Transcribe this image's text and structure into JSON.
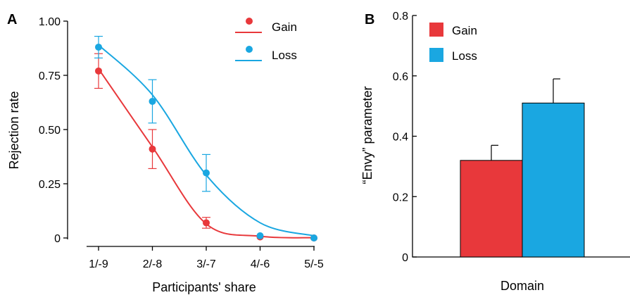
{
  "panels": {
    "a_label": "A",
    "b_label": "B"
  },
  "colors": {
    "gain": "#e8383b",
    "loss": "#1aa7e1",
    "axis": "#000000"
  },
  "chart_data": [
    {
      "type": "line",
      "panel": "A",
      "title": "",
      "xlabel": "Participants' share",
      "ylabel": "Rejection rate",
      "categories": [
        "1/-9",
        "2/-8",
        "3/-7",
        "4/-6",
        "5/-5"
      ],
      "yticks": [
        "0",
        "0.25",
        "0.50",
        "0.75",
        "1.00"
      ],
      "ylim": [
        0,
        1.0
      ],
      "legend": "top-right",
      "grid": false,
      "series": [
        {
          "name": "Gain",
          "values": [
            0.77,
            0.41,
            0.07,
            0.005,
            0.0
          ],
          "error": [
            0.08,
            0.09,
            0.025,
            0.0,
            0.0
          ],
          "fit": [
            0.78,
            0.42,
            0.065,
            0.008,
            0.001
          ]
        },
        {
          "name": "Loss",
          "values": [
            0.88,
            0.63,
            0.3,
            0.01,
            0.0
          ],
          "error": [
            0.05,
            0.1,
            0.085,
            0.0,
            0.0
          ],
          "fit": [
            0.89,
            0.66,
            0.29,
            0.07,
            0.01
          ]
        }
      ]
    },
    {
      "type": "bar",
      "panel": "B",
      "title": "",
      "xlabel": "Domain",
      "ylabel": "“Envy” parameter",
      "yticks": [
        "0",
        "0.2",
        "0.4",
        "0.6",
        "0.8"
      ],
      "ylim": [
        0,
        0.8
      ],
      "legend": "top-left",
      "grid": false,
      "categories": [
        "Gain",
        "Loss"
      ],
      "values": [
        0.32,
        0.51
      ],
      "error": [
        0.05,
        0.08
      ]
    }
  ]
}
